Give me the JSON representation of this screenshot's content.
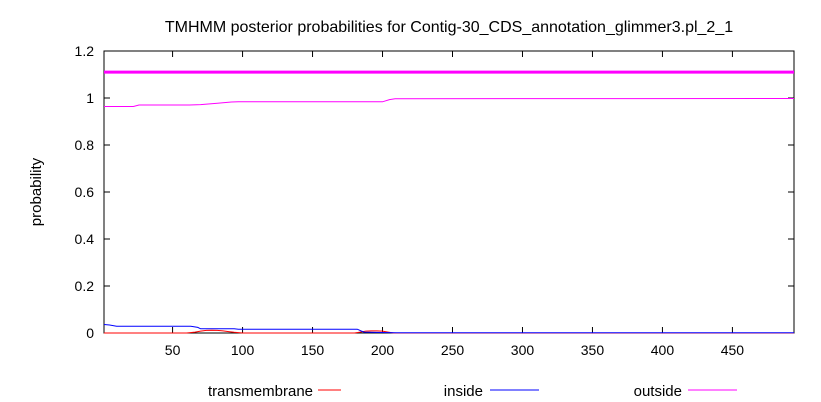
{
  "chart_data": {
    "type": "line",
    "title": "TMHMM posterior probabilities for Contig-30_CDS_annotation_glimmer3.pl_2_1",
    "xlabel": "",
    "ylabel": "probability",
    "xlim": [
      1,
      494
    ],
    "ylim": [
      0,
      1.2
    ],
    "xticks": [
      50,
      100,
      150,
      200,
      250,
      300,
      350,
      400,
      450
    ],
    "yticks": [
      0,
      0.2,
      0.4,
      0.6,
      0.8,
      1,
      1.2
    ],
    "ytick_labels": [
      "0",
      "0.2",
      "0.4",
      "0.6",
      "0.8",
      "1",
      "1.2"
    ],
    "grid": false,
    "legend_position": "bottom",
    "topology_bar": {
      "y": 1.11,
      "from": 1,
      "to": 494,
      "color": "#ff00ff"
    },
    "series": [
      {
        "name": "transmembrane",
        "color": "#ff0000",
        "x": [
          1,
          60,
          66,
          70,
          74,
          78,
          82,
          86,
          90,
          94,
          100,
          180,
          184,
          188,
          192,
          196,
          200,
          204,
          208,
          494
        ],
        "y": [
          0,
          0,
          0.004,
          0.008,
          0.011,
          0.012,
          0.011,
          0.009,
          0.006,
          0.003,
          0,
          0,
          0.004,
          0.008,
          0.009,
          0.009,
          0.008,
          0.004,
          0,
          0
        ]
      },
      {
        "name": "inside",
        "color": "#0000ff",
        "x": [
          1,
          5,
          10,
          63,
          68,
          70,
          94,
          97,
          182,
          185,
          187,
          200,
          210,
          494
        ],
        "y": [
          0.036,
          0.034,
          0.029,
          0.029,
          0.024,
          0.018,
          0.018,
          0.016,
          0.016,
          0.008,
          0.004,
          0.002,
          0.001,
          0.001
        ]
      },
      {
        "name": "outside",
        "color": "#ff00ff",
        "x": [
          1,
          22,
          26,
          62,
          70,
          82,
          92,
          97,
          200,
          205,
          209,
          494
        ],
        "y": [
          0.964,
          0.964,
          0.97,
          0.97,
          0.972,
          0.978,
          0.983,
          0.984,
          0.984,
          0.993,
          0.997,
          0.998
        ]
      }
    ]
  }
}
